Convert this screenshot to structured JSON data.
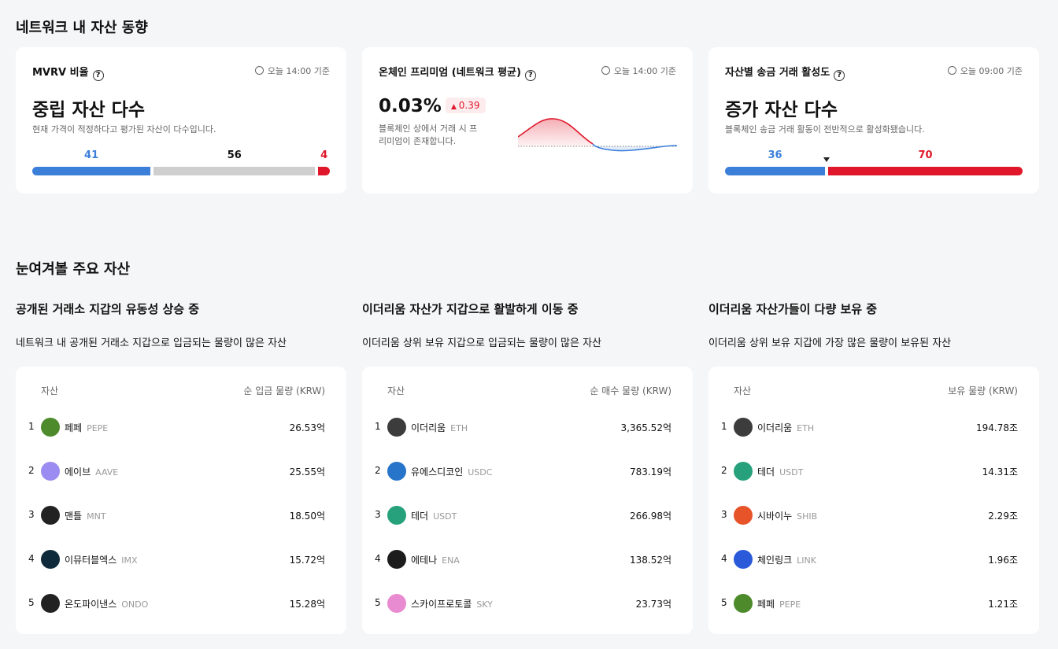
{
  "section1": {
    "title": "네트워크 내 자산 동향",
    "cards": [
      {
        "title": "MVRV 비율",
        "time": "오늘 14:00 기준",
        "headline": "중립 자산 다수",
        "desc": "현재 가격이 적정하다고 평가된 자산이 다수입니다.",
        "bar": [
          {
            "value": 41,
            "color": "#3b7fd9"
          },
          {
            "value": 56,
            "color": "#cfcfcf"
          },
          {
            "value": 4,
            "color": "#e0172a"
          }
        ]
      },
      {
        "title": "온체인 프리미엄 (네트워크 평균)",
        "time": "오늘 14:00 기준",
        "headline": "0.03%",
        "change": "0.39",
        "desc": "블록체인 상에서 거래 시 프리미엄이 존재합니다."
      },
      {
        "title": "자산별 송금 거래 활성도",
        "time": "오늘 09:00 기준",
        "headline": "증가 자산 다수",
        "desc": "블록체인 송금 거래 활동이 전반적으로 활성화됐습니다.",
        "bar": [
          {
            "value": 36,
            "color": "#3b7fd9"
          },
          {
            "value": 70,
            "color": "#e0172a"
          }
        ]
      }
    ]
  },
  "section2": {
    "title": "눈여겨볼 주요 자산",
    "columns": [
      {
        "heading": "공개된 거래소 지갑의 유동성 상승 중",
        "sub": "네트워크 내 공개된 거래소 지갑으로 입금되는 물량이 많은 자산",
        "col_asset": "자산",
        "col_value": "순 입금 물량 (KRW)",
        "rows": [
          [
            "1",
            "페페",
            "PEPE",
            "26.53억",
            "#4c8a2b"
          ],
          [
            "2",
            "에이브",
            "AAVE",
            "25.55억",
            "#9a8cf0"
          ],
          [
            "3",
            "맨틀",
            "MNT",
            "18.50억",
            "#222222"
          ],
          [
            "4",
            "이뮤터블엑스",
            "IMX",
            "15.72억",
            "#0f2a3a"
          ],
          [
            "5",
            "온도파이낸스",
            "ONDO",
            "15.28억",
            "#222222"
          ]
        ]
      },
      {
        "heading": "이더리움 자산가 지갑으로 활발하게 이동 중",
        "sub": "이더리움 상위 보유 지갑으로 입금되는 물량이 많은 자산",
        "col_asset": "자산",
        "col_value": "순 매수 물량 (KRW)",
        "rows": [
          [
            "1",
            "이더리움",
            "ETH",
            "3,365.52억",
            "#3c3c3d"
          ],
          [
            "2",
            "유에스디코인",
            "USDC",
            "783.19억",
            "#2775ca"
          ],
          [
            "3",
            "테더",
            "USDT",
            "266.98억",
            "#26a17b"
          ],
          [
            "4",
            "에테나",
            "ENA",
            "138.52억",
            "#1c1c1c"
          ],
          [
            "5",
            "스카이프로토콜",
            "SKY",
            "23.73억",
            "#e98bd1"
          ]
        ]
      },
      {
        "heading": "이더리움 자산가들이 다량 보유 중",
        "sub": "이더리움 상위 보유 지갑에 가장 많은 물량이 보유된 자산",
        "col_asset": "자산",
        "col_value": "보유 물량 (KRW)",
        "rows": [
          [
            "1",
            "이더리움",
            "ETH",
            "194.78조",
            "#3c3c3d"
          ],
          [
            "2",
            "테더",
            "USDT",
            "14.31조",
            "#26a17b"
          ],
          [
            "3",
            "시바이누",
            "SHIB",
            "2.29조",
            "#e8542a"
          ],
          [
            "4",
            "체인링크",
            "LINK",
            "1.96조",
            "#2a5ada"
          ],
          [
            "5",
            "페페",
            "PEPE",
            "1.21조",
            "#4c8a2b"
          ]
        ]
      }
    ]
  }
}
